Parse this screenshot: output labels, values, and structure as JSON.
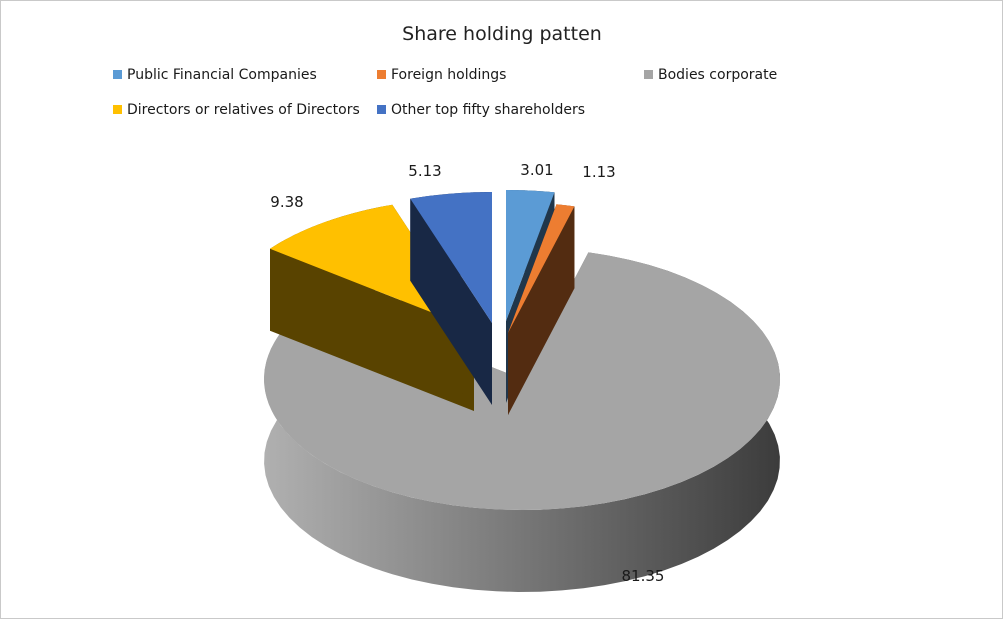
{
  "chart_data": {
    "type": "pie",
    "title": "Share holding patten",
    "legend_position": "top",
    "categories": [
      "Public Financial Companies",
      "Foreign holdings",
      "Bodies corporate",
      "Directors or relatives of Directors",
      "Other top fifty shareholders"
    ],
    "values": [
      3.01,
      1.13,
      81.35,
      9.38,
      5.13
    ],
    "data_labels": [
      "3.01",
      "1.13",
      "81.35",
      "9.38",
      "5.13"
    ],
    "colors": [
      "#5b9bd5",
      "#ed7d31",
      "#a5a5a5",
      "#ffc000",
      "#4472c4"
    ],
    "exploded": true,
    "style": "3d"
  }
}
